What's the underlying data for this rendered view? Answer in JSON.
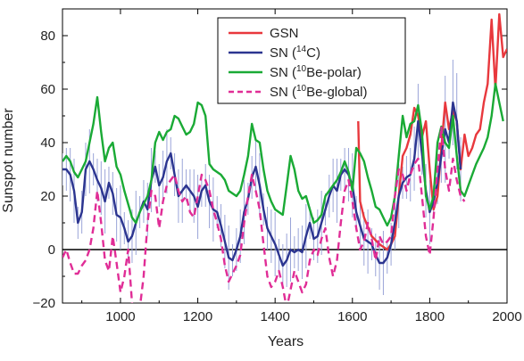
{
  "chart_data": {
    "type": "line",
    "xlabel": "Years",
    "ylabel": "Sunspot number",
    "xlim": [
      850,
      2000
    ],
    "ylim": [
      -20,
      90
    ],
    "x_ticks": [
      1000,
      1200,
      1400,
      1600,
      1800,
      2000
    ],
    "y_ticks": [
      -20,
      0,
      20,
      40,
      60,
      80
    ],
    "x_tick_labels": [
      "1000",
      "1200",
      "1400",
      "1600",
      "1800",
      "2000"
    ],
    "y_tick_labels": [
      "−20",
      "0",
      "20",
      "40",
      "60",
      "80"
    ],
    "zero_line": true,
    "grid": false,
    "legend_position": "top-center",
    "series": [
      {
        "name": "GSN",
        "legend_main": "GSN",
        "legend_sup": "",
        "legend_tail": "",
        "color": "#e8383d",
        "dash": "",
        "x": [
          1615,
          1620,
          1630,
          1650,
          1670,
          1690,
          1700,
          1710,
          1720,
          1730,
          1740,
          1750,
          1760,
          1770,
          1780,
          1790,
          1800,
          1810,
          1820,
          1830,
          1840,
          1850,
          1860,
          1870,
          1880,
          1890,
          1900,
          1910,
          1920,
          1930,
          1940,
          1950,
          1960,
          1970,
          1980,
          1990,
          2000
        ],
        "y": [
          48,
          18,
          12,
          5,
          2,
          0,
          2,
          5,
          20,
          35,
          38,
          43,
          53,
          50,
          42,
          48,
          30,
          15,
          20,
          38,
          55,
          45,
          52,
          48,
          30,
          43,
          35,
          38,
          43,
          45,
          55,
          62,
          86,
          60,
          88,
          72,
          75
        ]
      },
      {
        "name": "SN (14C)",
        "legend_main": "SN (",
        "legend_sup": "14",
        "legend_tail": "C)",
        "color": "#2c3590",
        "dash": "",
        "error_bars": true,
        "x": [
          850,
          860,
          870,
          880,
          890,
          900,
          910,
          920,
          930,
          940,
          950,
          960,
          970,
          980,
          990,
          1000,
          1010,
          1020,
          1030,
          1040,
          1050,
          1060,
          1070,
          1080,
          1090,
          1100,
          1110,
          1120,
          1130,
          1140,
          1150,
          1160,
          1170,
          1180,
          1190,
          1200,
          1210,
          1220,
          1230,
          1240,
          1250,
          1260,
          1270,
          1280,
          1290,
          1300,
          1310,
          1320,
          1330,
          1340,
          1350,
          1360,
          1370,
          1380,
          1390,
          1400,
          1410,
          1420,
          1430,
          1440,
          1450,
          1460,
          1470,
          1480,
          1490,
          1500,
          1510,
          1520,
          1530,
          1540,
          1550,
          1560,
          1570,
          1580,
          1590,
          1600,
          1610,
          1620,
          1630,
          1640,
          1650,
          1660,
          1670,
          1680,
          1690,
          1700,
          1710,
          1720,
          1730,
          1740,
          1750,
          1760,
          1770,
          1780,
          1790,
          1800,
          1810,
          1820,
          1830,
          1840,
          1850,
          1860,
          1870,
          1880
        ],
        "y": [
          30,
          30,
          28,
          22,
          10,
          14,
          30,
          33,
          30,
          26,
          23,
          18,
          25,
          21,
          13,
          12,
          8,
          3,
          5,
          10,
          14,
          18,
          15,
          26,
          31,
          24,
          27,
          33,
          36,
          28,
          20,
          22,
          24,
          22,
          20,
          16,
          22,
          24,
          18,
          15,
          14,
          9,
          3,
          -3,
          -4,
          0,
          5,
          14,
          19,
          27,
          31,
          24,
          15,
          8,
          5,
          2,
          -2,
          -6,
          -4,
          0,
          -1,
          0,
          -1,
          5,
          10,
          4,
          5,
          10,
          15,
          20,
          24,
          22,
          28,
          30,
          28,
          24,
          14,
          9,
          4,
          3,
          2,
          -2,
          -5,
          -5,
          -3,
          2,
          10,
          20,
          25,
          27,
          28,
          34,
          48,
          36,
          22,
          14,
          18,
          25,
          35,
          45,
          40,
          55,
          48,
          30
        ]
      },
      {
        "name": "SN (10Be-polar)",
        "legend_main": "SN (",
        "legend_sup": "10",
        "legend_tail": "Be-polar)",
        "color": "#1aaa35",
        "dash": "",
        "x": [
          850,
          860,
          870,
          880,
          890,
          900,
          910,
          920,
          930,
          940,
          950,
          960,
          970,
          980,
          990,
          1000,
          1010,
          1020,
          1030,
          1040,
          1050,
          1060,
          1070,
          1080,
          1090,
          1100,
          1110,
          1120,
          1130,
          1140,
          1150,
          1160,
          1170,
          1180,
          1190,
          1200,
          1210,
          1220,
          1230,
          1240,
          1250,
          1260,
          1270,
          1280,
          1290,
          1300,
          1310,
          1320,
          1330,
          1340,
          1350,
          1360,
          1370,
          1380,
          1390,
          1400,
          1410,
          1420,
          1430,
          1440,
          1450,
          1460,
          1470,
          1480,
          1490,
          1500,
          1510,
          1520,
          1530,
          1540,
          1550,
          1560,
          1570,
          1580,
          1590,
          1600,
          1610,
          1620,
          1630,
          1640,
          1650,
          1660,
          1670,
          1680,
          1690,
          1700,
          1710,
          1720,
          1730,
          1740,
          1750,
          1760,
          1770,
          1780,
          1790,
          1800,
          1810,
          1820,
          1830,
          1840,
          1850,
          1860,
          1870,
          1880,
          1890,
          1900,
          1910,
          1920,
          1930,
          1940,
          1950,
          1960,
          1970,
          1980,
          1990
        ],
        "y": [
          33,
          35,
          33,
          29,
          27,
          30,
          33,
          40,
          47,
          57,
          44,
          33,
          38,
          40,
          31,
          28,
          22,
          17,
          12,
          10,
          14,
          17,
          20,
          26,
          40,
          44,
          41,
          44,
          45,
          50,
          49,
          46,
          43,
          44,
          47,
          55,
          54,
          50,
          32,
          30,
          29,
          28,
          26,
          22,
          21,
          20,
          22,
          28,
          35,
          47,
          41,
          40,
          30,
          22,
          18,
          15,
          14,
          13,
          24,
          35,
          30,
          22,
          19,
          20,
          15,
          10,
          11,
          13,
          20,
          22,
          24,
          26,
          29,
          33,
          29,
          22,
          38,
          36,
          33,
          27,
          22,
          16,
          15,
          12,
          9,
          12,
          20,
          35,
          50,
          42,
          47,
          48,
          54,
          44,
          20,
          15,
          20,
          40,
          46,
          40,
          38,
          50,
          35,
          22,
          20,
          24,
          28,
          32,
          35,
          38,
          42,
          50,
          62,
          55,
          48
        ]
      },
      {
        "name": "SN (10Be-global)",
        "legend_main": "SN (",
        "legend_sup": "10",
        "legend_tail": "Be-global)",
        "color": "#e02d96",
        "dash": "8,5",
        "x": [
          850,
          860,
          870,
          880,
          890,
          900,
          910,
          920,
          930,
          940,
          950,
          960,
          970,
          980,
          990,
          1000,
          1010,
          1020,
          1030,
          1040,
          1050,
          1060,
          1070,
          1080,
          1090,
          1100,
          1110,
          1120,
          1130,
          1140,
          1150,
          1160,
          1170,
          1180,
          1190,
          1200,
          1210,
          1220,
          1230,
          1240,
          1250,
          1260,
          1270,
          1280,
          1290,
          1300,
          1310,
          1320,
          1330,
          1340,
          1350,
          1360,
          1370,
          1380,
          1390,
          1400,
          1410,
          1420,
          1430,
          1440,
          1450,
          1460,
          1470,
          1480,
          1490,
          1500,
          1510,
          1520,
          1530,
          1540,
          1550,
          1560,
          1570,
          1580,
          1590,
          1600,
          1610,
          1620,
          1630,
          1640,
          1650,
          1660,
          1670,
          1680,
          1690,
          1700,
          1710,
          1720,
          1730,
          1740,
          1750,
          1760,
          1770,
          1780,
          1790,
          1800,
          1810,
          1820,
          1830,
          1840,
          1850,
          1860,
          1870,
          1880,
          1890
        ],
        "y": [
          -3,
          0,
          -5,
          -9,
          -9,
          -6,
          -4,
          0,
          8,
          22,
          10,
          -4,
          -8,
          5,
          -5,
          -16,
          -10,
          0,
          -20,
          -28,
          -22,
          -10,
          10,
          22,
          20,
          8,
          18,
          24,
          26,
          28,
          22,
          18,
          20,
          14,
          12,
          20,
          28,
          26,
          22,
          15,
          10,
          4,
          -6,
          -12,
          -9,
          -6,
          -2,
          10,
          20,
          28,
          22,
          15,
          2,
          -10,
          -14,
          -12,
          -8,
          -14,
          -22,
          -15,
          -8,
          -12,
          -16,
          -13,
          -4,
          0,
          -2,
          4,
          8,
          -3,
          -10,
          -4,
          10,
          22,
          26,
          18,
          8,
          0,
          3,
          10,
          4,
          -4,
          5,
          2,
          3,
          5,
          20,
          30,
          28,
          22,
          28,
          32,
          34,
          20,
          5,
          -2,
          12,
          30,
          46,
          30,
          22,
          34,
          26,
          20,
          18
        ]
      }
    ]
  }
}
